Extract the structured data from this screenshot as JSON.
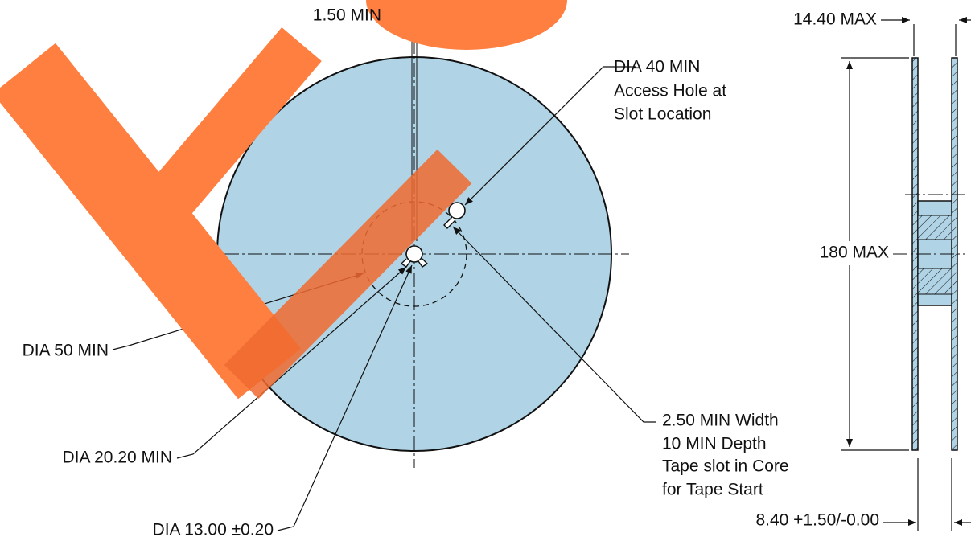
{
  "labels": {
    "slot_width_top": "1.50 MIN",
    "access_hole": [
      "DIA 40 MIN",
      "Access Hole at",
      "Slot Location"
    ],
    "dia_50": "DIA 50 MIN",
    "dia_20": "DIA 20.20 MIN",
    "dia_13": "DIA 13.00 ±0.20",
    "tape_slot": [
      "2.50 MIN Width",
      "10 MIN Depth",
      "Tape slot in Core",
      "for Tape Start"
    ],
    "width_max": "14.40 MAX",
    "dia_max": "180 MAX",
    "hub_width": "8.40 +1.50/-0.00"
  }
}
